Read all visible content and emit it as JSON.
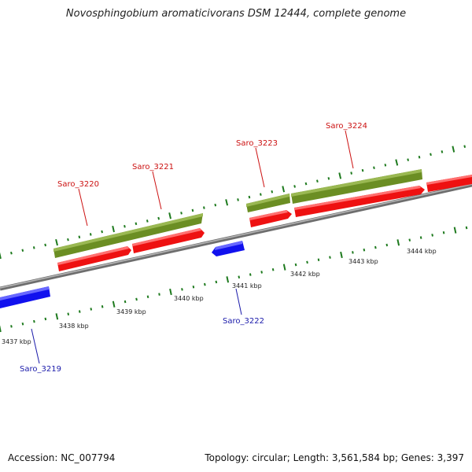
{
  "title": "Novosphingobium aromaticivorans DSM 12444, complete genome",
  "footer": {
    "accession": "Accession: NC_007794",
    "stats": "Topology: circular; Length: 3,561,584 bp; Genes: 3,397"
  },
  "colors": {
    "backbone": "#8a8a8a",
    "tick": "#1e7a1e",
    "forward_gene": "#ee1111",
    "reverse_gene": "#1111ee",
    "feature": "#6b8e23",
    "label_forward": "#cc1111",
    "label_reverse": "#1a1aaa"
  },
  "ticks": [
    {
      "label": "3437 kbp"
    },
    {
      "label": "3438 kbp"
    },
    {
      "label": "3439 kbp"
    },
    {
      "label": "3440 kbp"
    },
    {
      "label": "3441 kbp"
    },
    {
      "label": "3442 kbp"
    },
    {
      "label": "3443 kbp"
    },
    {
      "label": "3444 kbp"
    }
  ],
  "genes": [
    {
      "name": "Saro_3219",
      "strand": "reverse"
    },
    {
      "name": "Saro_3220",
      "strand": "forward"
    },
    {
      "name": "Saro_3221",
      "strand": "forward"
    },
    {
      "name": "Saro_3222",
      "strand": "reverse"
    },
    {
      "name": "Saro_3223",
      "strand": "forward"
    },
    {
      "name": "Saro_3224",
      "strand": "forward"
    }
  ]
}
